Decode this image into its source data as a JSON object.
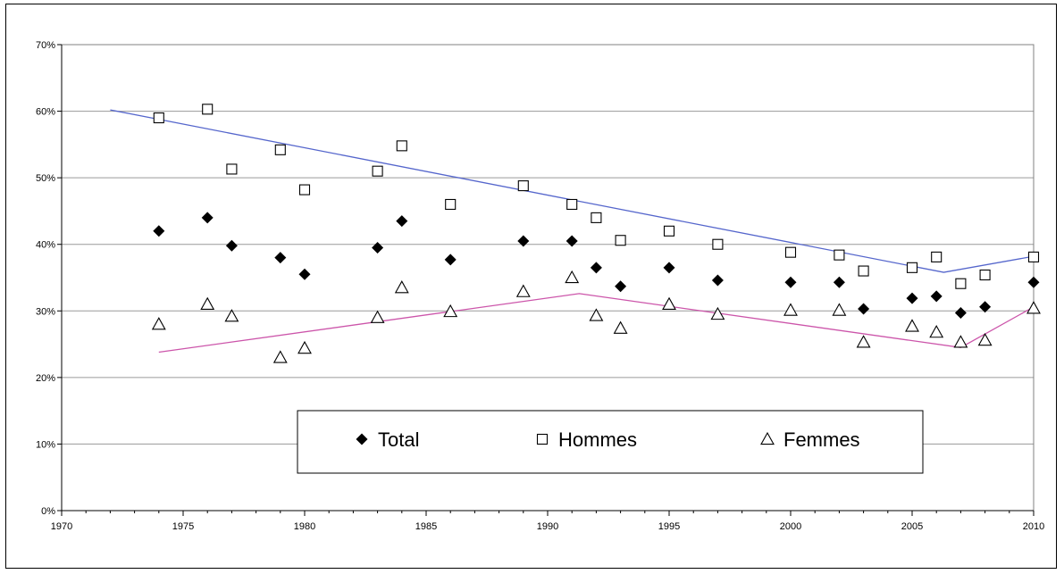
{
  "chart_data": {
    "type": "scatter",
    "title": "",
    "xlabel": "",
    "ylabel": "",
    "xlim": [
      1970,
      2010
    ],
    "ylim": [
      0,
      70
    ],
    "x_ticks": [
      "1970",
      "1975",
      "1980",
      "1985",
      "1990",
      "1995",
      "2000",
      "2005",
      "2010"
    ],
    "y_ticks": [
      "0%",
      "10%",
      "20%",
      "30%",
      "40%",
      "50%",
      "60%",
      "70%"
    ],
    "grid": "horizontal",
    "legend_position": "bottom-center",
    "series": [
      {
        "name": "Total",
        "marker": "diamond",
        "color": "#000000",
        "points": [
          [
            1974,
            42
          ],
          [
            1976,
            44
          ],
          [
            1977,
            39.8
          ],
          [
            1979,
            38
          ],
          [
            1980,
            35.5
          ],
          [
            1983,
            39.5
          ],
          [
            1984,
            43.5
          ],
          [
            1986,
            37.7
          ],
          [
            1989,
            40.5
          ],
          [
            1991,
            40.5
          ],
          [
            1992,
            36.5
          ],
          [
            1993,
            33.7
          ],
          [
            1995,
            36.5
          ],
          [
            1997,
            34.6
          ],
          [
            2000,
            34.3
          ],
          [
            2002,
            34.3
          ],
          [
            2003,
            30.3
          ],
          [
            2005,
            31.9
          ],
          [
            2006,
            32.2
          ],
          [
            2007,
            29.7
          ],
          [
            2008,
            30.6
          ],
          [
            2010,
            34.3
          ]
        ]
      },
      {
        "name": "Hommes",
        "marker": "square",
        "color": "#000000",
        "points": [
          [
            1974,
            59
          ],
          [
            1976,
            60.3
          ],
          [
            1977,
            51.3
          ],
          [
            1979,
            54.2
          ],
          [
            1980,
            48.2
          ],
          [
            1983,
            51
          ],
          [
            1984,
            54.8
          ],
          [
            1986,
            46
          ],
          [
            1989,
            48.8
          ],
          [
            1991,
            46
          ],
          [
            1992,
            44
          ],
          [
            1993,
            40.6
          ],
          [
            1995,
            42
          ],
          [
            1997,
            40
          ],
          [
            2000,
            38.8
          ],
          [
            2002,
            38.4
          ],
          [
            2003,
            36
          ],
          [
            2005,
            36.5
          ],
          [
            2006,
            38.1
          ],
          [
            2007,
            34.1
          ],
          [
            2008,
            35.4
          ],
          [
            2010,
            38.1
          ]
        ]
      },
      {
        "name": "Femmes",
        "marker": "triangle",
        "color": "#000000",
        "points": [
          [
            1974,
            28
          ],
          [
            1976,
            31
          ],
          [
            1977,
            29.2
          ],
          [
            1979,
            23
          ],
          [
            1980,
            24.4
          ],
          [
            1983,
            29
          ],
          [
            1984,
            33.5
          ],
          [
            1986,
            29.9
          ],
          [
            1989,
            32.9
          ],
          [
            1991,
            35
          ],
          [
            1992,
            29.3
          ],
          [
            1993,
            27.4
          ],
          [
            1995,
            31
          ],
          [
            1997,
            29.5
          ],
          [
            2000,
            30.1
          ],
          [
            2002,
            30.1
          ],
          [
            2003,
            25.3
          ],
          [
            2005,
            27.7
          ],
          [
            2006,
            26.8
          ],
          [
            2007,
            25.3
          ],
          [
            2008,
            25.6
          ],
          [
            2010,
            30.4
          ]
        ]
      }
    ],
    "trend_lines": [
      {
        "series": "Hommes",
        "color": "#5566cc",
        "points": [
          [
            1972,
            60.2
          ],
          [
            2006.3,
            35.8
          ],
          [
            2010,
            38.2
          ]
        ]
      },
      {
        "series": "Femmes",
        "color": "#cc55aa",
        "points": [
          [
            1974,
            23.8
          ],
          [
            1991.3,
            32.6
          ],
          [
            2007,
            24.5
          ],
          [
            2010,
            30.6
          ]
        ]
      }
    ]
  }
}
